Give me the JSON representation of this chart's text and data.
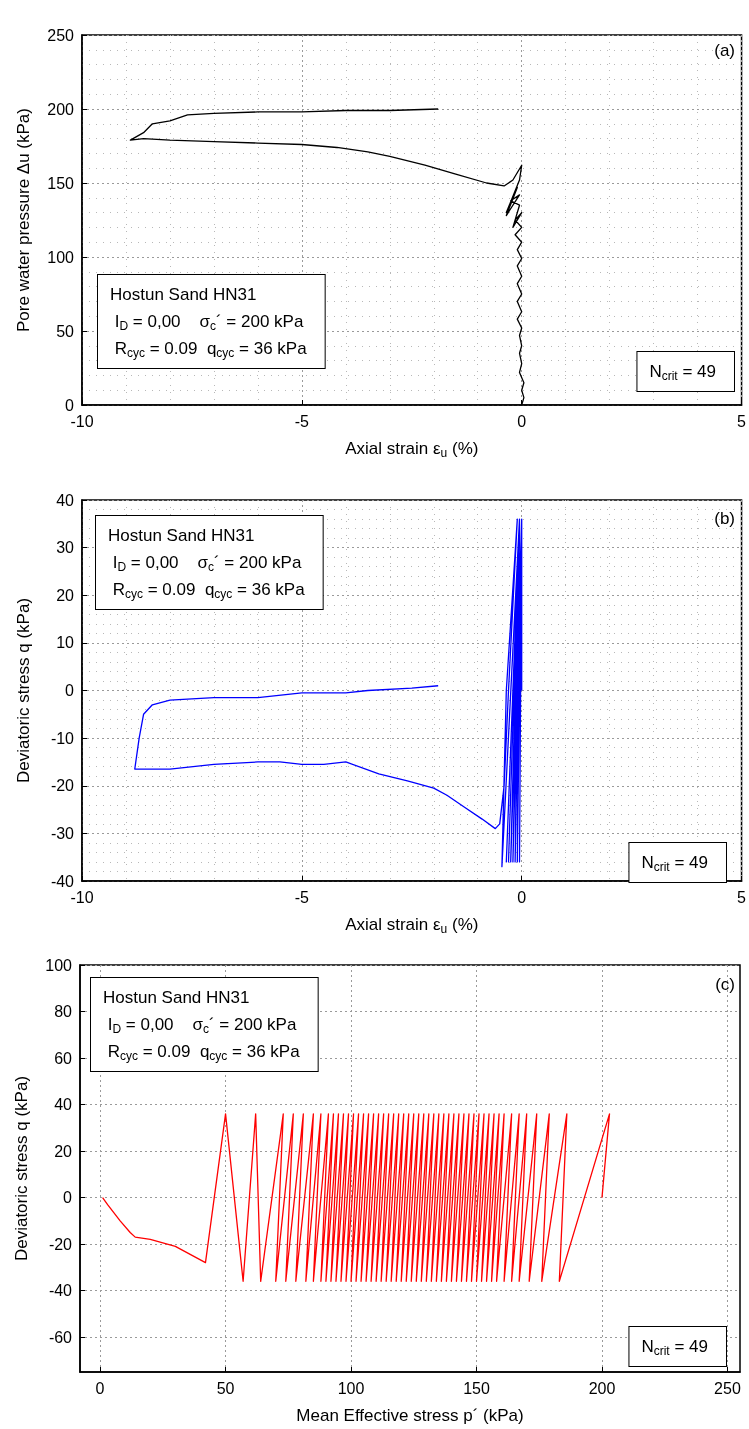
{
  "chart_data": [
    {
      "type": "line",
      "xlabel": "Axial strain ε$_{u}$ (%)",
      "ylabel": "Pore water pressure Δu (kPa)",
      "annotations": [
        "(a)",
        "Hostun Sand HN31\n I$_{D}$ = 0,00    σ$_{c}$´ = 200 kPa\n R$_{cyc}$ = 0.09  q$_{cyc}$ = 36 kPa",
        "N$_{crit}$ = 49"
      ],
      "series": [
        {
          "color": "#000000",
          "x": [
            0,
            0.05,
            0,
            0.05,
            -0.05,
            0,
            -0.05,
            0,
            -0.05,
            0,
            -0.1,
            0,
            -0.1,
            0,
            -0.1,
            0,
            -0.1,
            0,
            -0.1,
            0,
            -0.15,
            0,
            -0.15,
            0,
            -0.2,
            -0.05,
            -0.25,
            -0.05,
            -0.35,
            -0.1,
            -0.35,
            -0.05,
            0,
            -0.2,
            -0.4,
            -0.8,
            -1.5,
            -2.2,
            -3,
            -3.5,
            -4.2,
            -5,
            -6,
            -7,
            -8,
            -8.6,
            -8.9,
            -8.6,
            -8.4,
            -8,
            -7.6,
            -7,
            -6,
            -5,
            -4,
            -3,
            -1.9
          ],
          "values": [
            0,
            5,
            10,
            15,
            22,
            28,
            35,
            40,
            47,
            52,
            58,
            63,
            70,
            75,
            82,
            87,
            94,
            99,
            105,
            110,
            115,
            120,
            125,
            130,
            120,
            135,
            138,
            142,
            128,
            147,
            130,
            152,
            162,
            152,
            148,
            150,
            156,
            162,
            168,
            171,
            174,
            176,
            177,
            178,
            179,
            180,
            179,
            184,
            190,
            192,
            196,
            197,
            198,
            198,
            199,
            199,
            200
          ]
        }
      ],
      "xlim": [
        -10,
        5
      ],
      "xticks": [
        -10,
        -5,
        0,
        5
      ],
      "ylim": [
        0,
        250
      ],
      "yticks": [
        0,
        50,
        100,
        150,
        200,
        250
      ],
      "grid": true,
      "marker": "none",
      "line_style": "solid"
    },
    {
      "type": "line",
      "xlabel": "Axial strain ε$_{u}$ (%)",
      "ylabel": "Deviatoric stress q (kPa)",
      "annotations": [
        "(b)",
        "Hostun Sand HN31\n I$_{D}$ = 0,00    σ$_{c}$´ = 200 kPa\n R$_{cyc}$ = 0.09  q$_{cyc}$ = 36 kPa",
        "N$_{crit}$ = 49"
      ],
      "series": [
        {
          "color": "#0000ff",
          "x": [
            0,
            0,
            -0.05,
            0,
            -0.1,
            0,
            -0.05,
            0,
            -0.1,
            0,
            -0.1,
            0,
            -0.15,
            0,
            -0.1,
            0,
            -0.15,
            0,
            -0.1,
            -0.05,
            -0.15,
            0,
            -0.15,
            -0.05,
            -0.2,
            0,
            -0.15,
            -0.05,
            -0.2,
            0,
            -0.25,
            -0.05,
            -0.3,
            -0.05,
            -0.35,
            -0.05,
            -0.45,
            -0.35,
            -0.1,
            -0.3,
            -0.4,
            -0.5,
            -0.6,
            -0.9,
            -1.3,
            -1.7,
            -2,
            -2.6,
            -3.25,
            -4,
            -4.5,
            -5,
            -5.5,
            -6,
            -7,
            -8,
            -8.8,
            -8.7,
            -8.6,
            -8.4,
            -8,
            -7,
            -6,
            -5,
            -4,
            -3.5,
            -2.5,
            -1.9
          ],
          "values": [
            0,
            36,
            -36,
            36,
            -36,
            36,
            -36,
            36,
            -36,
            36,
            -36,
            36,
            -36,
            36,
            -36,
            36,
            -36,
            36,
            -36,
            36,
            -36,
            36,
            -36,
            36,
            -36,
            36,
            -36,
            36,
            -36,
            36,
            -36,
            36,
            -36,
            36,
            -36,
            36,
            -37,
            0,
            36,
            0,
            -20,
            -28,
            -29,
            -27,
            -24.5,
            -22,
            -20.5,
            -19,
            -17.5,
            -15,
            -15.5,
            -15.5,
            -15,
            -15,
            -15.5,
            -16.5,
            -16.5,
            -10,
            -5,
            -3,
            -2,
            -1.5,
            -1.5,
            -0.5,
            -0.5,
            0,
            0.5,
            1
          ]
        }
      ],
      "xlim": [
        -10,
        5
      ],
      "xticks": [
        -10,
        -5,
        0,
        5
      ],
      "ylim": [
        -40,
        40
      ],
      "yticks": [
        -40,
        -30,
        -20,
        -10,
        0,
        10,
        20,
        30,
        40
      ],
      "grid": true,
      "marker": "none",
      "line_style": "solid"
    },
    {
      "type": "line",
      "xlabel": "Mean Effective stress p´ (kPa)",
      "ylabel": "Deviatoric stress q (kPa)",
      "annotations": [
        "(c)",
        "Hostun Sand HN31\n I$_{D}$ = 0,00    σ$_{c}$´ = 200 kPa\n R$_{cyc}$ = 0.09  q$_{cyc}$ = 36 kPa",
        "N$_{crit}$ = 49"
      ],
      "series": [
        {
          "color": "#ff0000",
          "x": [
            200,
            203,
            183,
            186,
            176,
            179,
            171,
            174,
            167,
            170,
            164,
            167,
            161,
            164,
            158,
            161,
            156,
            159,
            154,
            157,
            152,
            155,
            150,
            153,
            148,
            151,
            146,
            149,
            144,
            147,
            142,
            145,
            140,
            143,
            138,
            141,
            136,
            139,
            134,
            137,
            132,
            135,
            130,
            133,
            128,
            131,
            126,
            129,
            124,
            127,
            122,
            125,
            120,
            123,
            118,
            121,
            116,
            119,
            114,
            117,
            112,
            115,
            110,
            113,
            108,
            111,
            106,
            109,
            104,
            107,
            102,
            105,
            100,
            103,
            98,
            101,
            96,
            99,
            94,
            97,
            92,
            95,
            90,
            93,
            88,
            91,
            85,
            88,
            82,
            85,
            78,
            81,
            74,
            77,
            70,
            73,
            64,
            62,
            57,
            50,
            42,
            30,
            20,
            14,
            12,
            8,
            3,
            1
          ],
          "values": [
            0,
            36,
            -36,
            36,
            -36,
            36,
            -36,
            36,
            -36,
            36,
            -36,
            36,
            -36,
            36,
            -36,
            36,
            -36,
            36,
            -36,
            36,
            -36,
            36,
            -36,
            36,
            -36,
            36,
            -36,
            36,
            -36,
            36,
            -36,
            36,
            -36,
            36,
            -36,
            36,
            -36,
            36,
            -36,
            36,
            -36,
            36,
            -36,
            36,
            -36,
            36,
            -36,
            36,
            -36,
            36,
            -36,
            36,
            -36,
            36,
            -36,
            36,
            -36,
            36,
            -36,
            36,
            -36,
            36,
            -36,
            36,
            -36,
            36,
            -36,
            36,
            -36,
            36,
            -36,
            36,
            -36,
            36,
            -36,
            36,
            -36,
            36,
            -36,
            36,
            -36,
            36,
            -36,
            36,
            -36,
            36,
            -36,
            36,
            -36,
            36,
            -36,
            36,
            -36,
            36,
            -36,
            36,
            -36,
            36,
            -36,
            36,
            -28,
            -21,
            -18,
            -17,
            -15,
            -10,
            -3,
            0
          ]
        }
      ],
      "xlim": [
        -8,
        255
      ],
      "xticks": [
        0,
        50,
        100,
        150,
        200,
        250
      ],
      "ylim": [
        -75,
        100
      ],
      "yticks": [
        -60,
        -40,
        -20,
        0,
        20,
        40,
        60,
        80,
        100
      ],
      "grid": true,
      "marker": "none",
      "line_style": "solid"
    }
  ]
}
